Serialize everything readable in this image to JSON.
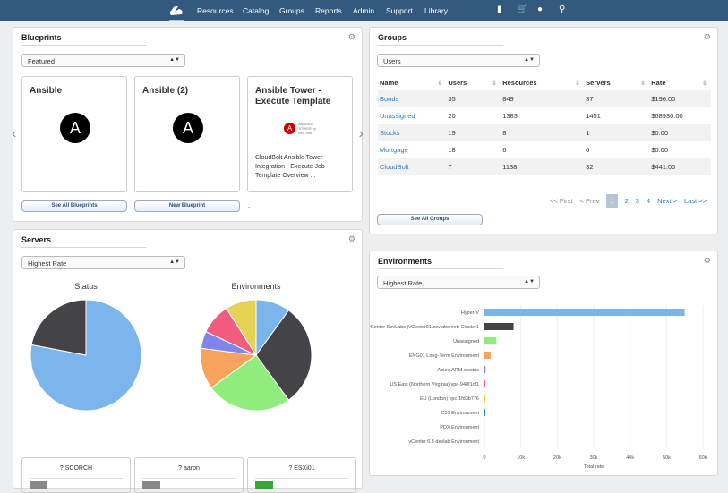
{
  "nav": {
    "items": [
      "Resources",
      "Catalog",
      "Groups",
      "Reports",
      "Admin",
      "Support",
      "Library"
    ],
    "icons": [
      "bookmark-icon",
      "cart-icon",
      "user-icon",
      "search-icon"
    ]
  },
  "blueprints": {
    "title": "Blueprints",
    "select": "Featured",
    "cards": [
      {
        "title": "Ansible"
      },
      {
        "title": "Ansible (2)"
      },
      {
        "title": "Ansible Tower - Execute Template",
        "logo_text": "ANSIBLE TOWER by Red Hat",
        "desc": "CloudBolt Ansible Tower Integration - Execute Job Template Overview ..."
      }
    ],
    "see_all": "See All Blueprints",
    "new": "New Blueprint",
    "dot": "."
  },
  "groups": {
    "title": "Groups",
    "select": "Users",
    "columns": [
      "Name",
      "Users",
      "Resources",
      "Servers",
      "Rate"
    ],
    "rows": [
      [
        "Bonds",
        "35",
        "849",
        "37",
        "$196.00"
      ],
      [
        "Unassigned",
        "20",
        "1383",
        "1451",
        "$68930.00"
      ],
      [
        "Stocks",
        "19",
        "8",
        "1",
        "$0.00"
      ],
      [
        "Mortgage",
        "18",
        "6",
        "0",
        "$0.00"
      ],
      [
        "CloudBolt",
        "7",
        "1138",
        "32",
        "$441.00"
      ]
    ],
    "pager": {
      "first": "<< First",
      "prev": "< Prev",
      "pages": [
        "1",
        "2",
        "3",
        "4"
      ],
      "current": "1",
      "next": "Next >",
      "last": "Last >>"
    },
    "see_all": "See All Groups"
  },
  "servers": {
    "title": "Servers",
    "select": "Highest Rate",
    "cards": [
      "?  SCORCH",
      "?  aaron",
      "?  ESXi01"
    ]
  },
  "environments": {
    "title": "Environments",
    "select": "Highest Rate"
  },
  "chart_data": [
    {
      "type": "pie",
      "title": "Status",
      "values": [
        78,
        22
      ],
      "colors": [
        "#7cb5ec",
        "#434348"
      ]
    },
    {
      "type": "pie",
      "title": "Environments",
      "values": [
        10,
        30,
        25,
        12,
        5,
        9,
        9
      ],
      "colors": [
        "#7cb5ec",
        "#434348",
        "#90ed7d",
        "#f7a35c",
        "#8085e9",
        "#f15c80",
        "#e4d354"
      ]
    },
    {
      "type": "bar",
      "orientation": "horizontal",
      "categories": [
        "Hyper-V",
        "vCenter SovLabs (vCenter01.sovlabs.net) Cluster1",
        "Unassigned",
        "ENG01 Long-Term Environment",
        "Azure ARM westus",
        "US East (Northern Virginia) vpc-948f1cf1",
        "EU (London) vpc-1fd3b776",
        "C01 Environment",
        "PDX Environment",
        "vCenter 6.5 devlab Environment"
      ],
      "values": [
        55000,
        8000,
        3300,
        1700,
        300,
        200,
        100,
        200,
        0,
        0
      ],
      "colors": [
        "#7cb5ec",
        "#434348",
        "#90ed7d",
        "#f7a35c",
        "#8085e9",
        "#f15c80",
        "#e4d354",
        "#2b908f",
        "#f45b5b",
        "#91e8e1"
      ],
      "xlabel": "Total rate",
      "xlim": [
        0,
        60000
      ],
      "xticks": [
        "0",
        "10k",
        "20k",
        "30k",
        "40k",
        "50k",
        "60k"
      ]
    }
  ]
}
